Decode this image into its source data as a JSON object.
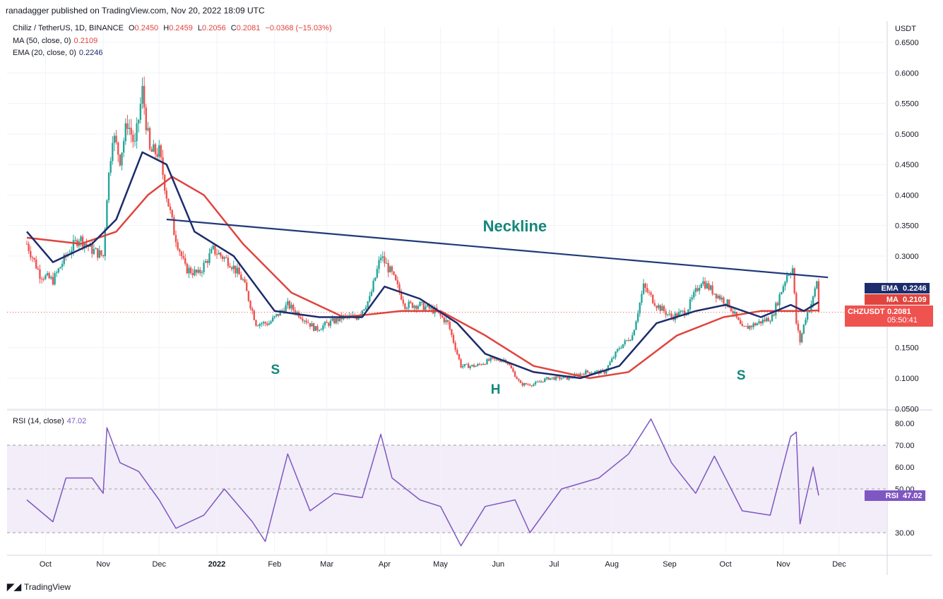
{
  "header": {
    "publisher_line": "ranadagger published on TradingView.com, Nov 20, 2022 18:09 UTC"
  },
  "legend": {
    "symbol": "Chiliz / TetherUS, 1D, BINANCE",
    "ohlc": {
      "o_label": "O",
      "o": "0.2450",
      "h_label": "H",
      "h": "0.2459",
      "l_label": "L",
      "l": "0.2056",
      "c_label": "C",
      "c": "0.2081",
      "change": "−0.0368 (−15.03%)"
    },
    "ma": {
      "label": "MA (50, close, 0)",
      "value": "0.2109"
    },
    "ema": {
      "label": "EMA (20, close, 0)",
      "value": "0.2246"
    },
    "rsi": {
      "label": "RSI (14, close)",
      "value": "47.02"
    }
  },
  "price_axis": {
    "unit": "USDT",
    "ticks": [
      "0.6500",
      "0.6000",
      "0.5500",
      "0.5000",
      "0.4500",
      "0.4000",
      "0.3500",
      "0.3000",
      "0.1500",
      "0.1000",
      "0.0500"
    ]
  },
  "rsi_axis": {
    "ticks": [
      "80.00",
      "70.00",
      "60.00",
      "50.00",
      "30.00"
    ]
  },
  "time_axis": {
    "ticks": [
      "Oct",
      "Nov",
      "Dec",
      "2022",
      "Feb",
      "Mar",
      "Apr",
      "May",
      "Jun",
      "Jul",
      "Aug",
      "Sep",
      "Oct",
      "Nov",
      "Dec"
    ]
  },
  "price_tags": {
    "ema": {
      "label": "EMA",
      "value": "0.2246",
      "color": "#1c2c6c"
    },
    "ma": {
      "label": "MA",
      "value": "0.2109",
      "color": "#e0443e"
    },
    "symbol": {
      "label": "CHZUSDT",
      "value": "0.2081",
      "countdown": "05:50:41",
      "color": "#ef5350"
    },
    "rsi": {
      "label": "RSI",
      "value": "47.02",
      "color": "#7e57c2"
    }
  },
  "annotations": {
    "neckline": "Neckline",
    "left_shoulder": "S",
    "head": "H",
    "right_shoulder": "S"
  },
  "footer": {
    "brand": "TradingView"
  },
  "colors": {
    "up": "#26a69a",
    "down": "#ef5350",
    "ema": "#1c2c6c",
    "ma": "#e0443e",
    "rsi": "#7e57c2",
    "neckline": "#1f3a7a",
    "annotation": "#15877a"
  },
  "chart_data": {
    "type": "candlestick",
    "title": "Chiliz / TetherUS, 1D, BINANCE",
    "ylabel": "USDT",
    "ylim": [
      0.05,
      0.67
    ],
    "x_start": "2021-09-21",
    "x_end": "2022-11-20",
    "price_series": [
      [
        "2021-09-21",
        0.32
      ],
      [
        "2021-09-28",
        0.27
      ],
      [
        "2021-10-05",
        0.26
      ],
      [
        "2021-10-12",
        0.3
      ],
      [
        "2021-10-19",
        0.33
      ],
      [
        "2021-10-26",
        0.31
      ],
      [
        "2021-11-01",
        0.3
      ],
      [
        "2021-11-03",
        0.4
      ],
      [
        "2021-11-06",
        0.5
      ],
      [
        "2021-11-10",
        0.46
      ],
      [
        "2021-11-14",
        0.52
      ],
      [
        "2021-11-18",
        0.48
      ],
      [
        "2021-11-22",
        0.57
      ],
      [
        "2021-11-26",
        0.47
      ],
      [
        "2021-12-01",
        0.47
      ],
      [
        "2021-12-05",
        0.4
      ],
      [
        "2021-12-09",
        0.34
      ],
      [
        "2021-12-15",
        0.28
      ],
      [
        "2021-12-22",
        0.27
      ],
      [
        "2021-12-30",
        0.31
      ],
      [
        "2022-01-08",
        0.29
      ],
      [
        "2022-01-15",
        0.26
      ],
      [
        "2022-01-22",
        0.19
      ],
      [
        "2022-01-29",
        0.19
      ],
      [
        "2022-02-08",
        0.22
      ],
      [
        "2022-02-16",
        0.2
      ],
      [
        "2022-02-23",
        0.18
      ],
      [
        "2022-03-02",
        0.19
      ],
      [
        "2022-03-10",
        0.2
      ],
      [
        "2022-03-17",
        0.2
      ],
      [
        "2022-03-24",
        0.23
      ],
      [
        "2022-03-30",
        0.3
      ],
      [
        "2022-04-05",
        0.27
      ],
      [
        "2022-04-12",
        0.22
      ],
      [
        "2022-04-20",
        0.22
      ],
      [
        "2022-04-28",
        0.21
      ],
      [
        "2022-05-05",
        0.19
      ],
      [
        "2022-05-12",
        0.12
      ],
      [
        "2022-05-20",
        0.12
      ],
      [
        "2022-05-28",
        0.13
      ],
      [
        "2022-06-05",
        0.13
      ],
      [
        "2022-06-13",
        0.09
      ],
      [
        "2022-06-20",
        0.09
      ],
      [
        "2022-06-28",
        0.1
      ],
      [
        "2022-07-08",
        0.1
      ],
      [
        "2022-07-18",
        0.11
      ],
      [
        "2022-07-28",
        0.11
      ],
      [
        "2022-08-05",
        0.15
      ],
      [
        "2022-08-12",
        0.17
      ],
      [
        "2022-08-18",
        0.25
      ],
      [
        "2022-08-25",
        0.22
      ],
      [
        "2022-09-02",
        0.2
      ],
      [
        "2022-09-10",
        0.21
      ],
      [
        "2022-09-18",
        0.26
      ],
      [
        "2022-09-25",
        0.24
      ],
      [
        "2022-10-03",
        0.22
      ],
      [
        "2022-10-10",
        0.18
      ],
      [
        "2022-10-18",
        0.19
      ],
      [
        "2022-10-26",
        0.2
      ],
      [
        "2022-11-03",
        0.27
      ],
      [
        "2022-11-06",
        0.28
      ],
      [
        "2022-11-08",
        0.19
      ],
      [
        "2022-11-10",
        0.16
      ],
      [
        "2022-11-13",
        0.2
      ],
      [
        "2022-11-17",
        0.23
      ],
      [
        "2022-11-19",
        0.26
      ],
      [
        "2022-11-20",
        0.2081
      ]
    ],
    "ema20": [
      [
        "2021-09-21",
        0.34
      ],
      [
        "2021-10-05",
        0.29
      ],
      [
        "2021-10-26",
        0.32
      ],
      [
        "2021-11-08",
        0.36
      ],
      [
        "2021-11-22",
        0.47
      ],
      [
        "2021-12-05",
        0.45
      ],
      [
        "2021-12-20",
        0.34
      ],
      [
        "2022-01-10",
        0.3
      ],
      [
        "2022-02-01",
        0.21
      ],
      [
        "2022-02-25",
        0.2
      ],
      [
        "2022-03-20",
        0.2
      ],
      [
        "2022-04-01",
        0.25
      ],
      [
        "2022-04-20",
        0.23
      ],
      [
        "2022-05-10",
        0.19
      ],
      [
        "2022-05-25",
        0.14
      ],
      [
        "2022-06-20",
        0.11
      ],
      [
        "2022-07-15",
        0.1
      ],
      [
        "2022-08-05",
        0.12
      ],
      [
        "2022-08-25",
        0.19
      ],
      [
        "2022-09-15",
        0.21
      ],
      [
        "2022-10-01",
        0.22
      ],
      [
        "2022-10-20",
        0.2
      ],
      [
        "2022-11-05",
        0.22
      ],
      [
        "2022-11-12",
        0.21
      ],
      [
        "2022-11-20",
        0.2246
      ]
    ],
    "ma50": [
      [
        "2021-09-21",
        0.33
      ],
      [
        "2021-10-20",
        0.32
      ],
      [
        "2021-11-08",
        0.34
      ],
      [
        "2021-11-25",
        0.4
      ],
      [
        "2021-12-08",
        0.43
      ],
      [
        "2021-12-25",
        0.4
      ],
      [
        "2022-01-15",
        0.32
      ],
      [
        "2022-02-10",
        0.24
      ],
      [
        "2022-03-10",
        0.2
      ],
      [
        "2022-04-10",
        0.21
      ],
      [
        "2022-05-01",
        0.21
      ],
      [
        "2022-05-25",
        0.17
      ],
      [
        "2022-06-20",
        0.12
      ],
      [
        "2022-07-20",
        0.1
      ],
      [
        "2022-08-10",
        0.11
      ],
      [
        "2022-09-05",
        0.17
      ],
      [
        "2022-09-30",
        0.2
      ],
      [
        "2022-10-20",
        0.21
      ],
      [
        "2022-11-10",
        0.21
      ],
      [
        "2022-11-20",
        0.2109
      ]
    ],
    "rsi": [
      [
        "2021-09-21",
        45
      ],
      [
        "2021-10-05",
        35
      ],
      [
        "2021-10-12",
        55
      ],
      [
        "2021-10-26",
        55
      ],
      [
        "2021-11-01",
        48
      ],
      [
        "2021-11-03",
        78
      ],
      [
        "2021-11-10",
        62
      ],
      [
        "2021-11-20",
        58
      ],
      [
        "2021-12-01",
        45
      ],
      [
        "2021-12-10",
        32
      ],
      [
        "2021-12-25",
        38
      ],
      [
        "2022-01-05",
        50
      ],
      [
        "2022-01-20",
        35
      ],
      [
        "2022-01-27",
        26
      ],
      [
        "2022-02-08",
        66
      ],
      [
        "2022-02-20",
        40
      ],
      [
        "2022-03-05",
        48
      ],
      [
        "2022-03-20",
        46
      ],
      [
        "2022-03-30",
        75
      ],
      [
        "2022-04-05",
        55
      ],
      [
        "2022-04-20",
        45
      ],
      [
        "2022-05-01",
        42
      ],
      [
        "2022-05-12",
        24
      ],
      [
        "2022-05-25",
        42
      ],
      [
        "2022-06-10",
        45
      ],
      [
        "2022-06-18",
        30
      ],
      [
        "2022-07-05",
        50
      ],
      [
        "2022-07-25",
        55
      ],
      [
        "2022-08-10",
        66
      ],
      [
        "2022-08-22",
        82
      ],
      [
        "2022-09-02",
        62
      ],
      [
        "2022-09-15",
        48
      ],
      [
        "2022-09-25",
        65
      ],
      [
        "2022-10-10",
        40
      ],
      [
        "2022-10-25",
        38
      ],
      [
        "2022-11-05",
        74
      ],
      [
        "2022-11-08",
        76
      ],
      [
        "2022-11-10",
        34
      ],
      [
        "2022-11-17",
        60
      ],
      [
        "2022-11-20",
        47.02
      ]
    ],
    "rsi_ylim": [
      20,
      85
    ],
    "rsi_bands": [
      30,
      70
    ],
    "neckline": [
      [
        "2021-12-05",
        0.36
      ],
      [
        "2022-11-25",
        0.265
      ]
    ],
    "grid": true
  }
}
